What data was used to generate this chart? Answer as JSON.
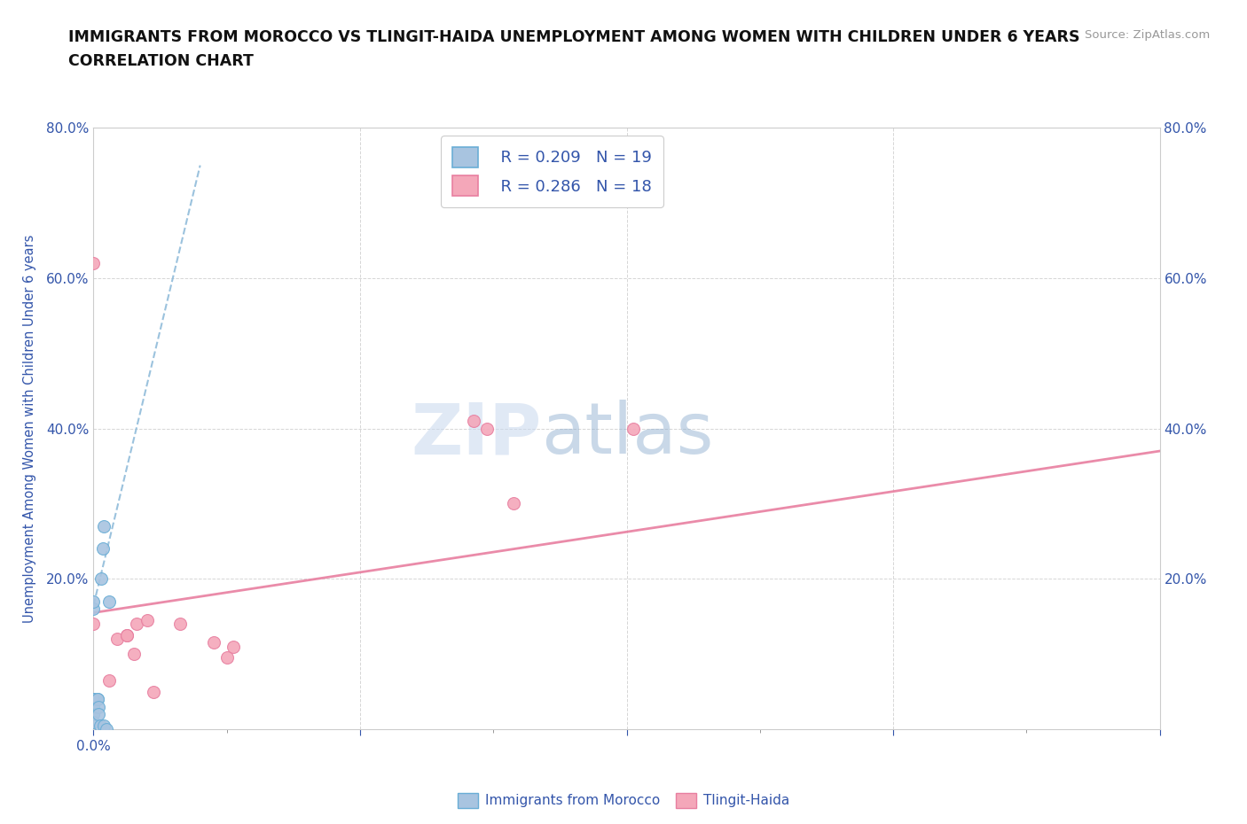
{
  "title_line1": "IMMIGRANTS FROM MOROCCO VS TLINGIT-HAIDA UNEMPLOYMENT AMONG WOMEN WITH CHILDREN UNDER 6 YEARS",
  "title_line2": "CORRELATION CHART",
  "source": "Source: ZipAtlas.com",
  "ylabel": "Unemployment Among Women with Children Under 6 years",
  "xlim": [
    0.0,
    0.8
  ],
  "ylim": [
    0.0,
    0.8
  ],
  "xticks_major": [
    0.0,
    0.2,
    0.4,
    0.6,
    0.8
  ],
  "yticks_major": [
    0.0,
    0.2,
    0.4,
    0.6,
    0.8
  ],
  "xticklabels": [
    "0.0%",
    "",
    "",
    "",
    "80.0%"
  ],
  "yticklabels": [
    "",
    "20.0%",
    "40.0%",
    "60.0%",
    "80.0%"
  ],
  "right_yticklabels": [
    "20.0%",
    "40.0%",
    "60.0%",
    "80.0%"
  ],
  "morocco_color": "#a8c4e0",
  "tlingit_color": "#f4a7b9",
  "morocco_edge": "#6aaed6",
  "tlingit_edge": "#e87fa0",
  "trendline_morocco_color": "#8ab8d8",
  "trendline_tlingit_color": "#e87fa0",
  "watermark_zip": "ZIP",
  "watermark_atlas": "atlas",
  "legend_r_morocco": "R = 0.209",
  "legend_n_morocco": "N = 19",
  "legend_r_tlingit": "R = 0.286",
  "legend_n_tlingit": "N = 18",
  "legend_label_morocco": "Immigrants from Morocco",
  "legend_label_tlingit": "Tlingit-Haida",
  "morocco_x": [
    0.0,
    0.0,
    0.0,
    0.0,
    0.0,
    0.0,
    0.0,
    0.0,
    0.003,
    0.003,
    0.004,
    0.004,
    0.005,
    0.006,
    0.007,
    0.008,
    0.008,
    0.01,
    0.012
  ],
  "morocco_y": [
    0.16,
    0.17,
    0.04,
    0.04,
    0.03,
    0.02,
    0.02,
    0.01,
    0.04,
    0.04,
    0.03,
    0.02,
    0.005,
    0.2,
    0.24,
    0.27,
    0.005,
    0.0,
    0.17
  ],
  "tlingit_x": [
    0.0,
    0.0,
    0.012,
    0.018,
    0.025,
    0.025,
    0.03,
    0.032,
    0.04,
    0.045,
    0.065,
    0.09,
    0.1,
    0.105,
    0.285,
    0.295,
    0.315,
    0.405
  ],
  "tlingit_y": [
    0.14,
    0.62,
    0.065,
    0.12,
    0.125,
    0.125,
    0.1,
    0.14,
    0.145,
    0.05,
    0.14,
    0.115,
    0.095,
    0.11,
    0.41,
    0.4,
    0.3,
    0.4
  ],
  "morocco_trend_x": [
    0.0,
    0.08
  ],
  "morocco_trend_y": [
    0.165,
    0.75
  ],
  "tlingit_trend_x": [
    0.0,
    0.8
  ],
  "tlingit_trend_y": [
    0.155,
    0.37
  ],
  "grid_color": "#cccccc",
  "bg_color": "#ffffff",
  "text_color": "#3355aa",
  "marker_size": 100
}
